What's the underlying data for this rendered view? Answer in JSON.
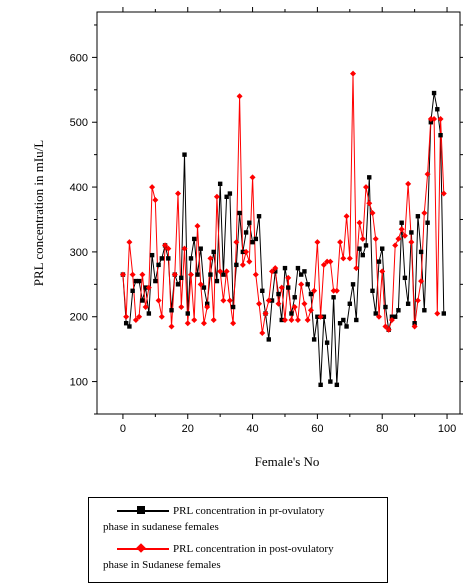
{
  "chart_data": {
    "type": "line",
    "title": "",
    "xlabel": "Female's No",
    "ylabel": "PRL concentration in mIu/L",
    "xlim": [
      -8,
      104
    ],
    "ylim": [
      50,
      670
    ],
    "xticks": [
      0,
      20,
      40,
      60,
      80,
      100
    ],
    "yticks": [
      100,
      200,
      300,
      400,
      500,
      600
    ],
    "grid": false,
    "legend_position": "bottom",
    "series": [
      {
        "name": "PRL concentration in pr-ovulatory phase in sudanese females",
        "color": "#000000",
        "marker": "square",
        "x": [
          0,
          1,
          2,
          3,
          4,
          5,
          6,
          7,
          8,
          9,
          10,
          11,
          12,
          13,
          14,
          15,
          16,
          17,
          18,
          19,
          20,
          21,
          22,
          23,
          24,
          25,
          26,
          27,
          28,
          29,
          30,
          31,
          32,
          33,
          34,
          35,
          36,
          37,
          38,
          39,
          40,
          41,
          42,
          43,
          44,
          45,
          46,
          47,
          48,
          49,
          50,
          51,
          52,
          53,
          54,
          55,
          56,
          57,
          58,
          59,
          60,
          61,
          62,
          63,
          64,
          65,
          66,
          67,
          68,
          69,
          70,
          71,
          72,
          73,
          74,
          75,
          76,
          77,
          78,
          79,
          80,
          81,
          82,
          83,
          84,
          85,
          86,
          87,
          88,
          89,
          90,
          91,
          92,
          93,
          94,
          95,
          96,
          97,
          98,
          99
        ],
        "y": [
          265,
          190,
          185,
          240,
          255,
          255,
          225,
          245,
          205,
          295,
          255,
          280,
          290,
          310,
          290,
          210,
          265,
          250,
          260,
          450,
          205,
          290,
          320,
          265,
          305,
          245,
          220,
          265,
          300,
          255,
          405,
          265,
          385,
          390,
          215,
          280,
          360,
          300,
          330,
          345,
          315,
          320,
          355,
          240,
          205,
          165,
          225,
          270,
          235,
          195,
          275,
          245,
          205,
          230,
          275,
          265,
          270,
          250,
          235,
          165,
          200,
          95,
          200,
          160,
          100,
          230,
          95,
          190,
          195,
          185,
          220,
          250,
          195,
          305,
          295,
          310,
          415,
          240,
          205,
          285,
          305,
          215,
          180,
          200,
          200,
          210,
          345,
          260,
          220,
          330,
          190,
          355,
          300,
          210,
          345,
          500,
          545,
          520,
          480,
          205
        ]
      },
      {
        "name": "PRL concentration in post-ovulatory phase in Sudanese females",
        "color": "#ff0000",
        "marker": "diamond",
        "x": [
          0,
          1,
          2,
          3,
          4,
          5,
          6,
          7,
          8,
          9,
          10,
          11,
          12,
          13,
          14,
          15,
          16,
          17,
          18,
          19,
          20,
          21,
          22,
          23,
          24,
          25,
          26,
          27,
          28,
          29,
          30,
          31,
          32,
          33,
          34,
          35,
          36,
          37,
          38,
          39,
          40,
          41,
          42,
          43,
          44,
          45,
          46,
          47,
          48,
          49,
          50,
          51,
          52,
          53,
          54,
          55,
          56,
          57,
          58,
          59,
          60,
          61,
          62,
          63,
          64,
          65,
          66,
          67,
          68,
          69,
          70,
          71,
          72,
          73,
          74,
          75,
          76,
          77,
          78,
          79,
          80,
          81,
          82,
          83,
          84,
          85,
          86,
          87,
          88,
          89,
          90,
          91,
          92,
          93,
          94,
          95,
          96,
          97,
          98,
          99
        ],
        "y": [
          265,
          200,
          315,
          265,
          195,
          200,
          265,
          215,
          245,
          400,
          380,
          225,
          200,
          310,
          305,
          185,
          265,
          390,
          215,
          305,
          190,
          265,
          195,
          340,
          250,
          190,
          215,
          290,
          195,
          385,
          270,
          225,
          270,
          225,
          190,
          315,
          540,
          280,
          300,
          285,
          415,
          265,
          220,
          175,
          205,
          225,
          270,
          275,
          220,
          245,
          195,
          260,
          195,
          215,
          195,
          250,
          220,
          195,
          210,
          240,
          315,
          200,
          280,
          285,
          285,
          240,
          240,
          315,
          290,
          355,
          290,
          575,
          275,
          345,
          320,
          400,
          375,
          360,
          320,
          200,
          270,
          185,
          180,
          195,
          310,
          320,
          335,
          325,
          405,
          315,
          185,
          225,
          255,
          360,
          420,
          505,
          505,
          205,
          505,
          390
        ]
      }
    ]
  },
  "legend": {
    "entries": [
      {
        "line1": "PRL concentration in pr-ovulatory",
        "line2": "phase in sudanese females",
        "color": "#000000",
        "marker": "square"
      },
      {
        "line1": "PRL concentration in post-ovulatory",
        "line2": "phase in Sudanese females",
        "color": "#ff0000",
        "marker": "diamond"
      }
    ]
  }
}
